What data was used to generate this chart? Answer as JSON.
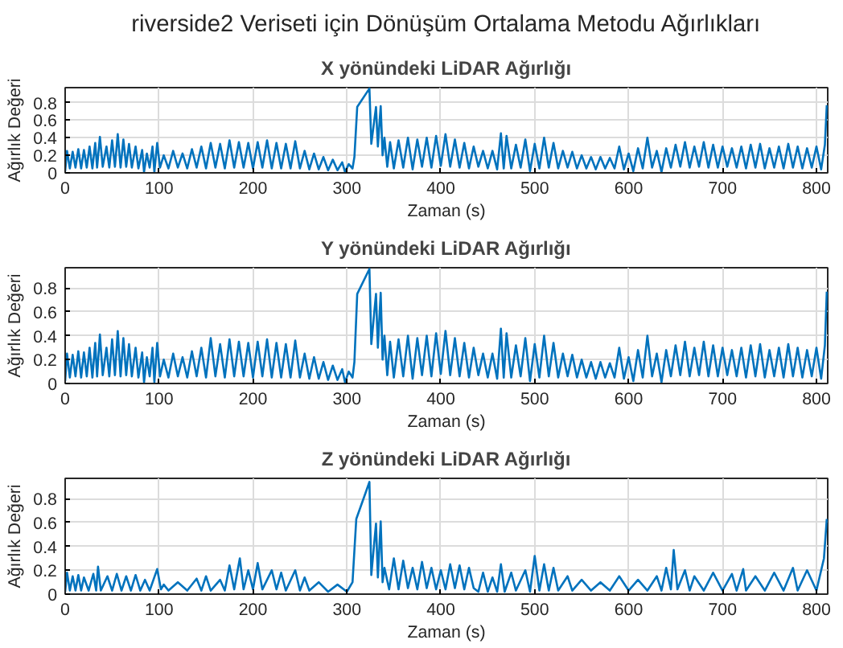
{
  "chart_data": [
    {
      "type": "line",
      "title": "riverside2 Veriseti için Dönüşüm Ortalama Metodu Ağırlıkları",
      "subtitle": "X yönündeki LiDAR Ağırlığı",
      "xlabel": "Zaman (s)",
      "ylabel": "Ağırlık Değeri",
      "xlim": [
        0,
        812
      ],
      "ylim": [
        0,
        0.97
      ],
      "xticks": [
        0,
        100,
        200,
        300,
        400,
        500,
        600,
        700,
        800
      ],
      "yticks": [
        0,
        0.2,
        0.4,
        0.6,
        0.8
      ],
      "grid": true,
      "series": [
        {
          "color": "#0072bd",
          "x": [
            0,
            2,
            5,
            8,
            11,
            14,
            17,
            20,
            23,
            26,
            29,
            32,
            34,
            37,
            40,
            44,
            47,
            50,
            53,
            56,
            59,
            62,
            65,
            68,
            71,
            75,
            78,
            82,
            84,
            87,
            90,
            93,
            95,
            98,
            101,
            105,
            110,
            115,
            120,
            125,
            130,
            135,
            140,
            145,
            150,
            155,
            160,
            165,
            170,
            175,
            180,
            185,
            190,
            195,
            200,
            205,
            210,
            215,
            220,
            225,
            230,
            235,
            240,
            245,
            250,
            255,
            260,
            265,
            270,
            275,
            280,
            285,
            290,
            295,
            298,
            302,
            306,
            308,
            311,
            324,
            326,
            331,
            333,
            336,
            338,
            340,
            343,
            346,
            350,
            355,
            360,
            365,
            370,
            375,
            380,
            385,
            390,
            395,
            400,
            405,
            410,
            415,
            420,
            425,
            430,
            435,
            440,
            445,
            450,
            455,
            460,
            464,
            467,
            470,
            475,
            480,
            485,
            490,
            495,
            500,
            505,
            510,
            515,
            520,
            525,
            530,
            535,
            540,
            545,
            550,
            555,
            560,
            565,
            570,
            575,
            580,
            585,
            590,
            595,
            600,
            605,
            610,
            615,
            620,
            625,
            630,
            635,
            640,
            645,
            650,
            655,
            660,
            665,
            670,
            675,
            680,
            685,
            690,
            695,
            700,
            705,
            710,
            715,
            720,
            725,
            730,
            735,
            740,
            745,
            750,
            755,
            760,
            765,
            770,
            775,
            780,
            785,
            790,
            795,
            800,
            805,
            809,
            811
          ],
          "values": [
            0.02,
            0.25,
            0.05,
            0.24,
            0.06,
            0.27,
            0.05,
            0.26,
            0.06,
            0.3,
            0.05,
            0.34,
            0.06,
            0.41,
            0.07,
            0.3,
            0.06,
            0.37,
            0.07,
            0.44,
            0.06,
            0.38,
            0.07,
            0.33,
            0.06,
            0.3,
            0.05,
            0.26,
            0.01,
            0.22,
            0.06,
            0.3,
            0.01,
            0.34,
            0.06,
            0.2,
            0.05,
            0.25,
            0.06,
            0.22,
            0.05,
            0.27,
            0.06,
            0.3,
            0.05,
            0.34,
            0.06,
            0.33,
            0.05,
            0.37,
            0.06,
            0.35,
            0.06,
            0.34,
            0.05,
            0.35,
            0.06,
            0.37,
            0.05,
            0.34,
            0.05,
            0.33,
            0.05,
            0.36,
            0.05,
            0.25,
            0.04,
            0.22,
            0.04,
            0.18,
            0.03,
            0.15,
            0.03,
            0.12,
            0.01,
            0.1,
            0.05,
            0.18,
            0.75,
            0.96,
            0.33,
            0.75,
            0.3,
            0.76,
            0.2,
            0.4,
            0.07,
            0.35,
            0.05,
            0.37,
            0.06,
            0.4,
            0.04,
            0.38,
            0.07,
            0.4,
            0.06,
            0.42,
            0.08,
            0.44,
            0.07,
            0.38,
            0.06,
            0.34,
            0.05,
            0.3,
            0.07,
            0.25,
            0.05,
            0.25,
            0.04,
            0.45,
            0.05,
            0.42,
            0.05,
            0.32,
            0.06,
            0.38,
            0.02,
            0.33,
            0.05,
            0.4,
            0.06,
            0.34,
            0.05,
            0.25,
            0.06,
            0.24,
            0.05,
            0.2,
            0.05,
            0.18,
            0.04,
            0.18,
            0.05,
            0.17,
            0.05,
            0.3,
            0.04,
            0.22,
            0.02,
            0.28,
            0.05,
            0.4,
            0.06,
            0.25,
            0.01,
            0.28,
            0.06,
            0.32,
            0.07,
            0.35,
            0.06,
            0.3,
            0.07,
            0.35,
            0.06,
            0.32,
            0.06,
            0.3,
            0.07,
            0.28,
            0.06,
            0.3,
            0.05,
            0.32,
            0.06,
            0.33,
            0.05,
            0.28,
            0.06,
            0.3,
            0.05,
            0.33,
            0.06,
            0.3,
            0.05,
            0.28,
            0.06,
            0.3,
            0.04,
            0.32,
            0.77
          ]
        }
      ]
    },
    {
      "type": "line",
      "title": "Y yönündeki LiDAR Ağırlığı",
      "xlabel": "Zaman (s)",
      "ylabel": "Ağırlık Değeri",
      "xlim": [
        0,
        812
      ],
      "ylim": [
        0,
        0.97
      ],
      "xticks": [
        0,
        100,
        200,
        300,
        400,
        500,
        600,
        700,
        800
      ],
      "yticks": [
        0,
        0.2,
        0.4,
        0.6,
        0.8
      ],
      "grid": true,
      "series": [
        {
          "color": "#0072bd",
          "x": [
            0,
            2,
            5,
            8,
            11,
            14,
            17,
            20,
            23,
            26,
            29,
            32,
            34,
            37,
            40,
            44,
            47,
            50,
            53,
            56,
            59,
            62,
            65,
            68,
            71,
            75,
            78,
            82,
            84,
            87,
            90,
            93,
            95,
            98,
            101,
            105,
            110,
            115,
            120,
            125,
            130,
            135,
            140,
            145,
            150,
            155,
            160,
            165,
            170,
            175,
            180,
            185,
            190,
            195,
            200,
            205,
            210,
            215,
            220,
            225,
            230,
            235,
            240,
            245,
            250,
            255,
            260,
            265,
            270,
            275,
            280,
            285,
            290,
            295,
            298,
            302,
            306,
            308,
            311,
            324,
            326,
            331,
            333,
            336,
            338,
            340,
            343,
            346,
            350,
            355,
            360,
            365,
            370,
            375,
            380,
            385,
            390,
            395,
            400,
            405,
            410,
            415,
            420,
            425,
            430,
            435,
            440,
            445,
            450,
            455,
            460,
            464,
            467,
            470,
            475,
            480,
            485,
            490,
            495,
            500,
            505,
            510,
            515,
            520,
            525,
            530,
            535,
            540,
            545,
            550,
            555,
            560,
            565,
            570,
            575,
            580,
            585,
            590,
            595,
            600,
            605,
            610,
            615,
            620,
            625,
            630,
            635,
            640,
            645,
            650,
            655,
            660,
            665,
            670,
            675,
            680,
            685,
            690,
            695,
            700,
            705,
            710,
            715,
            720,
            725,
            730,
            735,
            740,
            745,
            750,
            755,
            760,
            765,
            770,
            775,
            780,
            785,
            790,
            795,
            800,
            805,
            809,
            811
          ],
          "values": [
            0.02,
            0.25,
            0.05,
            0.24,
            0.06,
            0.27,
            0.05,
            0.26,
            0.06,
            0.3,
            0.05,
            0.34,
            0.06,
            0.41,
            0.07,
            0.3,
            0.06,
            0.37,
            0.07,
            0.44,
            0.06,
            0.38,
            0.07,
            0.33,
            0.06,
            0.3,
            0.05,
            0.26,
            0.01,
            0.22,
            0.06,
            0.3,
            0.01,
            0.34,
            0.06,
            0.2,
            0.05,
            0.25,
            0.06,
            0.22,
            0.05,
            0.27,
            0.06,
            0.3,
            0.05,
            0.38,
            0.06,
            0.33,
            0.05,
            0.37,
            0.06,
            0.35,
            0.06,
            0.34,
            0.05,
            0.35,
            0.06,
            0.37,
            0.05,
            0.34,
            0.05,
            0.33,
            0.05,
            0.36,
            0.05,
            0.25,
            0.04,
            0.22,
            0.04,
            0.18,
            0.03,
            0.15,
            0.03,
            0.12,
            0.01,
            0.1,
            0.05,
            0.18,
            0.75,
            0.96,
            0.33,
            0.75,
            0.3,
            0.76,
            0.2,
            0.4,
            0.07,
            0.35,
            0.05,
            0.37,
            0.06,
            0.4,
            0.04,
            0.38,
            0.07,
            0.4,
            0.06,
            0.42,
            0.08,
            0.44,
            0.07,
            0.38,
            0.06,
            0.34,
            0.05,
            0.3,
            0.07,
            0.25,
            0.05,
            0.25,
            0.04,
            0.46,
            0.05,
            0.42,
            0.05,
            0.32,
            0.06,
            0.38,
            0.02,
            0.33,
            0.05,
            0.4,
            0.06,
            0.34,
            0.05,
            0.25,
            0.06,
            0.24,
            0.05,
            0.2,
            0.05,
            0.18,
            0.04,
            0.18,
            0.05,
            0.17,
            0.05,
            0.3,
            0.04,
            0.22,
            0.02,
            0.28,
            0.05,
            0.4,
            0.06,
            0.25,
            0.01,
            0.28,
            0.06,
            0.32,
            0.07,
            0.35,
            0.06,
            0.3,
            0.07,
            0.35,
            0.06,
            0.32,
            0.06,
            0.3,
            0.07,
            0.28,
            0.06,
            0.3,
            0.05,
            0.32,
            0.06,
            0.33,
            0.05,
            0.28,
            0.06,
            0.3,
            0.05,
            0.33,
            0.06,
            0.3,
            0.05,
            0.28,
            0.06,
            0.3,
            0.04,
            0.32,
            0.77
          ]
        }
      ]
    },
    {
      "type": "line",
      "title": "Z yönündeki LiDAR Ağırlığı",
      "xlabel": "Zaman (s)",
      "ylabel": "Ağırlık Değeri",
      "xlim": [
        0,
        812
      ],
      "ylim": [
        0,
        0.97
      ],
      "xticks": [
        0,
        100,
        200,
        300,
        400,
        500,
        600,
        700,
        800
      ],
      "yticks": [
        0,
        0.2,
        0.4,
        0.6,
        0.8
      ],
      "grid": true,
      "series": [
        {
          "color": "#0072bd",
          "x": [
            0,
            2,
            5,
            8,
            11,
            14,
            17,
            20,
            25,
            30,
            33,
            35,
            38,
            45,
            50,
            55,
            60,
            65,
            70,
            75,
            80,
            85,
            90,
            98,
            102,
            105,
            110,
            120,
            130,
            140,
            145,
            150,
            155,
            165,
            170,
            175,
            180,
            186,
            190,
            195,
            200,
            205,
            210,
            220,
            225,
            230,
            235,
            245,
            250,
            255,
            260,
            270,
            280,
            290,
            300,
            306,
            310,
            324,
            326,
            331,
            333,
            336,
            338,
            340,
            345,
            350,
            355,
            360,
            365,
            370,
            375,
            380,
            385,
            390,
            395,
            400,
            405,
            410,
            415,
            420,
            425,
            430,
            435,
            440,
            445,
            450,
            455,
            460,
            464,
            468,
            475,
            480,
            490,
            495,
            500,
            505,
            510,
            515,
            520,
            525,
            535,
            540,
            550,
            560,
            570,
            580,
            590,
            600,
            610,
            620,
            630,
            635,
            640,
            645,
            648,
            652,
            660,
            665,
            670,
            680,
            690,
            700,
            710,
            715,
            722,
            725,
            735,
            745,
            755,
            765,
            775,
            780,
            790,
            800,
            808,
            811
          ],
          "values": [
            0.02,
            0.18,
            0.03,
            0.15,
            0.03,
            0.16,
            0.03,
            0.14,
            0.03,
            0.17,
            0.03,
            0.23,
            0.03,
            0.15,
            0.03,
            0.17,
            0.03,
            0.15,
            0.03,
            0.16,
            0.03,
            0.12,
            0.03,
            0.21,
            0.04,
            0.08,
            0.03,
            0.1,
            0.03,
            0.13,
            0.03,
            0.15,
            0.03,
            0.12,
            0.03,
            0.24,
            0.04,
            0.3,
            0.04,
            0.2,
            0.04,
            0.26,
            0.04,
            0.2,
            0.04,
            0.18,
            0.03,
            0.2,
            0.03,
            0.14,
            0.03,
            0.1,
            0.02,
            0.08,
            0.02,
            0.1,
            0.63,
            0.94,
            0.16,
            0.59,
            0.14,
            0.61,
            0.1,
            0.22,
            0.04,
            0.3,
            0.04,
            0.28,
            0.05,
            0.22,
            0.04,
            0.27,
            0.05,
            0.22,
            0.04,
            0.2,
            0.04,
            0.25,
            0.05,
            0.24,
            0.04,
            0.22,
            0.05,
            0.02,
            0.18,
            0.02,
            0.14,
            0.02,
            0.25,
            0.02,
            0.18,
            0.03,
            0.2,
            0.02,
            0.32,
            0.03,
            0.25,
            0.03,
            0.22,
            0.03,
            0.15,
            0.03,
            0.12,
            0.03,
            0.1,
            0.03,
            0.15,
            0.03,
            0.12,
            0.03,
            0.15,
            0.03,
            0.22,
            0.04,
            0.37,
            0.04,
            0.2,
            0.03,
            0.15,
            0.03,
            0.18,
            0.03,
            0.17,
            0.03,
            0.21,
            0.03,
            0.15,
            0.03,
            0.18,
            0.03,
            0.22,
            0.03,
            0.2,
            0.03,
            0.3,
            0.63
          ]
        }
      ]
    }
  ]
}
